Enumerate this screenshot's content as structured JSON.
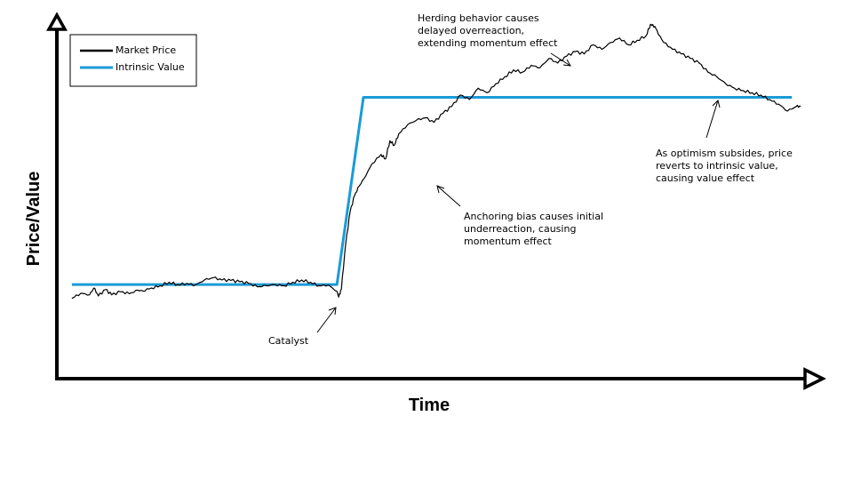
{
  "chart_data": {
    "type": "line",
    "xlabel": "Time",
    "ylabel": "Price/Value",
    "legend": {
      "placement": "top-left",
      "entries": [
        {
          "label": "Market Price",
          "color": "#000000"
        },
        {
          "label": "Intrinsic Value",
          "color": "#1a9bd7"
        }
      ]
    },
    "grid": false,
    "axes_ticks": false,
    "series": [
      {
        "name": "Market Price",
        "color": "#000000",
        "x": [
          0,
          10,
          20,
          25,
          30,
          38,
          45,
          55,
          65,
          75,
          80,
          90,
          100,
          110,
          120,
          130,
          140,
          150,
          160,
          170,
          180,
          190,
          200,
          210,
          220,
          230,
          240,
          250,
          260,
          270,
          280,
          290,
          300,
          302,
          305,
          310,
          315,
          320,
          325,
          330,
          340,
          350,
          355,
          360,
          365,
          370,
          380,
          390,
          400,
          410,
          420,
          430,
          440,
          450,
          460,
          470,
          480,
          490,
          500,
          510,
          520,
          530,
          540,
          550,
          560,
          570,
          580,
          590,
          600,
          610,
          620,
          630,
          640,
          650,
          655,
          660,
          665,
          670,
          680,
          690,
          700,
          710,
          720,
          730,
          740,
          750,
          760,
          770,
          780,
          790,
          800,
          810,
          820,
          825
        ],
        "y": [
          0.4,
          0.62,
          0.55,
          0.85,
          0.5,
          0.78,
          0.55,
          0.68,
          0.6,
          0.75,
          0.72,
          0.85,
          0.95,
          1.1,
          1.0,
          1.05,
          0.98,
          1.2,
          1.3,
          1.2,
          1.18,
          1.12,
          1.05,
          0.9,
          0.95,
          1.0,
          0.95,
          1.1,
          1.2,
          1.1,
          0.95,
          0.98,
          0.7,
          0.45,
          0.8,
          2.8,
          4.2,
          4.9,
          5.3,
          5.6,
          6.3,
          6.7,
          6.5,
          7.3,
          7.1,
          7.6,
          8.0,
          8.2,
          8.3,
          8.1,
          8.5,
          8.8,
          9.3,
          9.1,
          9.6,
          9.4,
          9.8,
          10.1,
          10.4,
          10.3,
          10.6,
          10.5,
          10.9,
          10.7,
          11.0,
          11.2,
          11.1,
          11.5,
          11.3,
          11.6,
          11.8,
          11.5,
          11.7,
          11.9,
          12.4,
          12.3,
          11.9,
          11.6,
          11.3,
          11.1,
          10.9,
          10.7,
          10.3,
          10.1,
          9.8,
          9.6,
          9.5,
          9.4,
          9.3,
          9.1,
          8.9,
          8.6,
          8.8,
          8.8
        ]
      },
      {
        "name": "Intrinsic Value",
        "color": "#1a9bd7",
        "x": [
          0,
          300,
          330,
          815
        ],
        "y": [
          1.0,
          1.0,
          9.2,
          9.2
        ]
      }
    ],
    "xlim": [
      -15,
      850
    ],
    "ylim": [
      -3.2,
      12.8
    ],
    "annotations": [
      {
        "id": "catalyst",
        "text": [
          "Catalyst"
        ]
      },
      {
        "id": "anchoring",
        "text": [
          "Anchoring bias causes initial",
          "underreaction, causing",
          "momentum effect"
        ]
      },
      {
        "id": "herding",
        "text": [
          "Herding behavior causes",
          "delayed overreaction,",
          "extending momentum effect"
        ]
      },
      {
        "id": "optimism",
        "text": [
          "As optimism subsides, price",
          "reverts to intrinsic value,",
          "causing value effect"
        ]
      }
    ]
  }
}
